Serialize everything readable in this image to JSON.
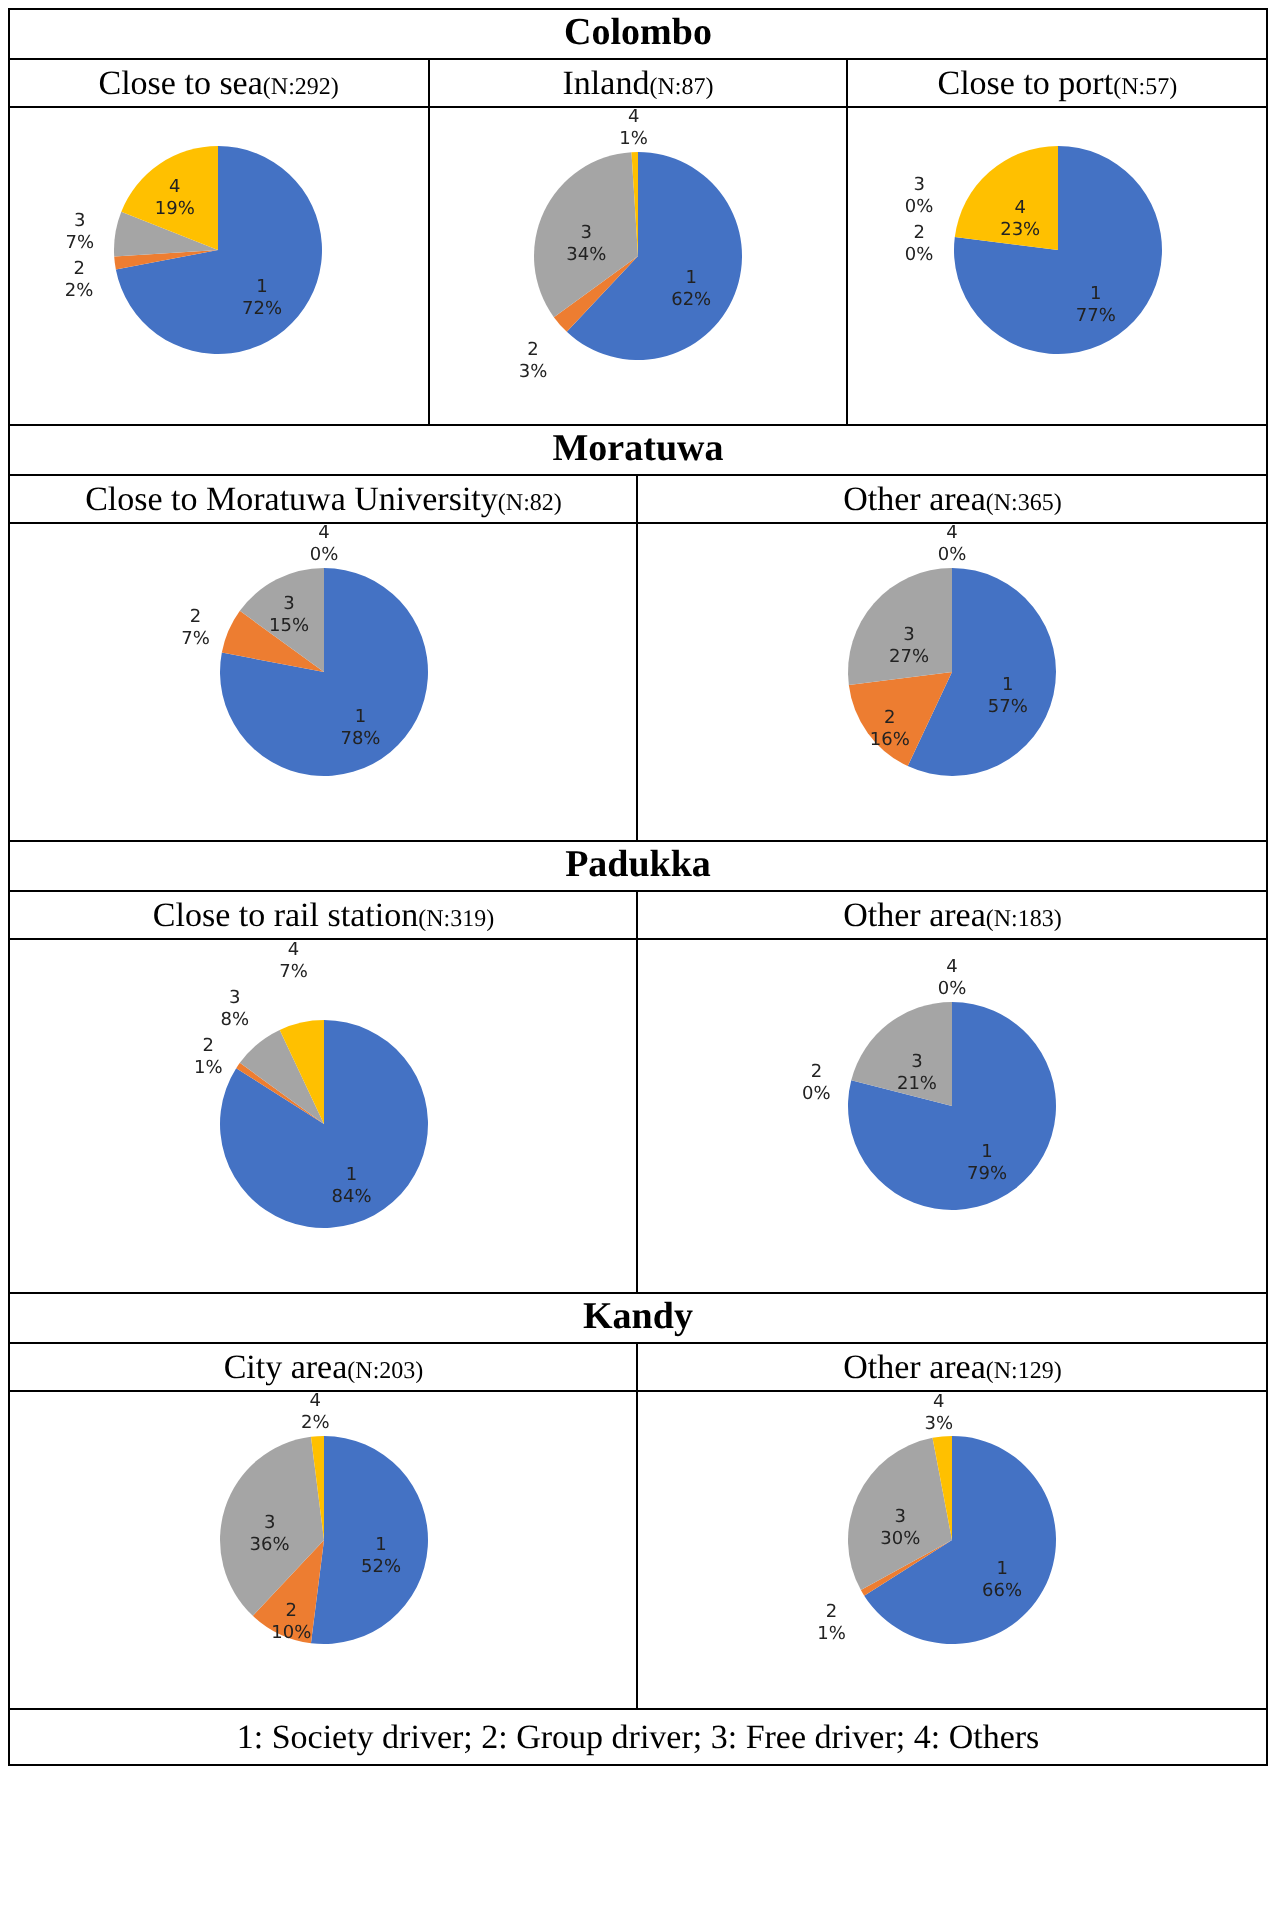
{
  "chart_data": [
    {
      "type": "pie",
      "title": "Close to sea(N:292)",
      "annotations": [
        "Colombo"
      ],
      "categories": [
        "1",
        "2",
        "3",
        "4"
      ],
      "values": [
        72,
        2,
        7,
        19
      ],
      "value_labels": [
        "72%",
        "2%",
        "7%",
        "19%"
      ],
      "colors": [
        "#4472c4",
        "#ed7d31",
        "#a5a5a5",
        "#ffc000"
      ]
    },
    {
      "type": "pie",
      "title": "Inland(N:87)",
      "categories": [
        "1",
        "2",
        "3",
        "4"
      ],
      "values": [
        62,
        3,
        34,
        1
      ],
      "value_labels": [
        "62%",
        "3%",
        "34%",
        "1%"
      ],
      "colors": [
        "#4472c4",
        "#ed7d31",
        "#a5a5a5",
        "#ffc000"
      ]
    },
    {
      "type": "pie",
      "title": "Close to port(N:57)",
      "categories": [
        "1",
        "2",
        "3",
        "4"
      ],
      "values": [
        77,
        0,
        0,
        23
      ],
      "value_labels": [
        "77%",
        "0%",
        "0%",
        "23%"
      ],
      "colors": [
        "#4472c4",
        "#ed7d31",
        "#a5a5a5",
        "#ffc000"
      ]
    },
    {
      "type": "pie",
      "title": "Close to Moratuwa University(N:82)",
      "annotations": [
        "Moratuwa"
      ],
      "categories": [
        "1",
        "2",
        "3",
        "4"
      ],
      "values": [
        78,
        7,
        15,
        0
      ],
      "value_labels": [
        "78%",
        "7%",
        "15%",
        "0%"
      ],
      "colors": [
        "#4472c4",
        "#ed7d31",
        "#a5a5a5",
        "#ffc000"
      ]
    },
    {
      "type": "pie",
      "title": "Other area(N:365)",
      "categories": [
        "1",
        "2",
        "3",
        "4"
      ],
      "values": [
        57,
        16,
        27,
        0
      ],
      "value_labels": [
        "57%",
        "16%",
        "27%",
        "0%"
      ],
      "colors": [
        "#4472c4",
        "#ed7d31",
        "#a5a5a5",
        "#ffc000"
      ]
    },
    {
      "type": "pie",
      "title": "Close to rail station(N:319)",
      "annotations": [
        "Padukka"
      ],
      "categories": [
        "1",
        "2",
        "3",
        "4"
      ],
      "values": [
        84,
        1,
        8,
        7
      ],
      "value_labels": [
        "84%",
        "1%",
        "8%",
        "7%"
      ],
      "colors": [
        "#4472c4",
        "#ed7d31",
        "#a5a5a5",
        "#ffc000"
      ]
    },
    {
      "type": "pie",
      "title": "Other area(N:183)",
      "categories": [
        "1",
        "2",
        "3",
        "4"
      ],
      "values": [
        79,
        0,
        21,
        0
      ],
      "value_labels": [
        "79%",
        "0%",
        "21%",
        "0%"
      ],
      "colors": [
        "#4472c4",
        "#ed7d31",
        "#a5a5a5",
        "#ffc000"
      ]
    },
    {
      "type": "pie",
      "title": "City area(N:203)",
      "annotations": [
        "Kandy"
      ],
      "categories": [
        "1",
        "2",
        "3",
        "4"
      ],
      "values": [
        52,
        10,
        36,
        2
      ],
      "value_labels": [
        "52%",
        "10%",
        "36%",
        "2%"
      ],
      "colors": [
        "#4472c4",
        "#ed7d31",
        "#a5a5a5",
        "#ffc000"
      ]
    },
    {
      "type": "pie",
      "title": "Other area(N:129)",
      "annotations": [
        "1: Society driver; 2: Group driver; 3: Free driver; 4: Others"
      ],
      "categories": [
        "1",
        "2",
        "3",
        "4"
      ],
      "values": [
        66,
        1,
        30,
        3
      ],
      "value_labels": [
        "66%",
        "1%",
        "30%",
        "3%"
      ],
      "colors": [
        "#4472c4",
        "#ed7d31",
        "#a5a5a5",
        "#ffc000"
      ]
    }
  ]
}
